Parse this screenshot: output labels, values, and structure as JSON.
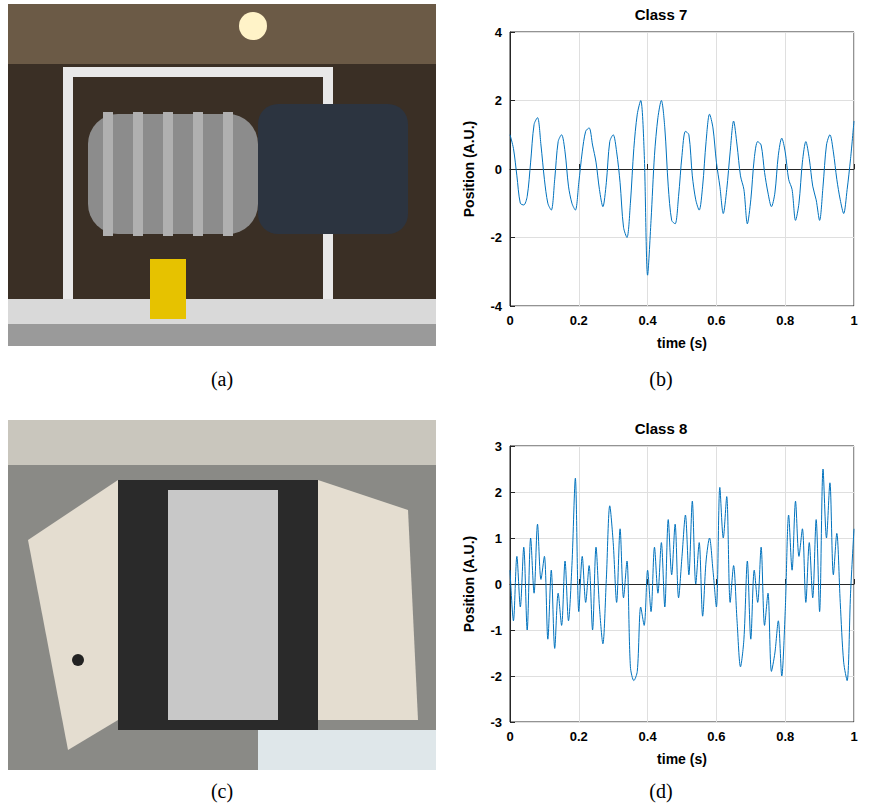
{
  "photos": [
    {
      "label": "(a)"
    },
    {
      "label": "(c)"
    }
  ],
  "chart_data": [
    {
      "type": "line",
      "panel_label": "(b)",
      "title": "Class 7",
      "x_label": "time (s)",
      "y_label": "Position (A.U.)",
      "color": "#0072bd",
      "grid": true,
      "xlim": [
        0,
        1
      ],
      "xticks": [
        0,
        0.2,
        0.4,
        0.6,
        0.8,
        1
      ],
      "ylim": [
        -4,
        4
      ],
      "yticks": [
        -4,
        -2,
        0,
        2,
        4
      ],
      "x": [
        0,
        0.01,
        0.02,
        0.03,
        0.04,
        0.05,
        0.06,
        0.07,
        0.08,
        0.09,
        0.1,
        0.11,
        0.12,
        0.13,
        0.14,
        0.15,
        0.16,
        0.17,
        0.18,
        0.19,
        0.2,
        0.21,
        0.22,
        0.23,
        0.24,
        0.25,
        0.26,
        0.27,
        0.28,
        0.29,
        0.3,
        0.31,
        0.32,
        0.33,
        0.34,
        0.35,
        0.36,
        0.37,
        0.38,
        0.39,
        0.4,
        0.41,
        0.42,
        0.43,
        0.44,
        0.45,
        0.46,
        0.47,
        0.48,
        0.49,
        0.5,
        0.51,
        0.52,
        0.53,
        0.54,
        0.55,
        0.56,
        0.57,
        0.58,
        0.59,
        0.6,
        0.61,
        0.62,
        0.63,
        0.64,
        0.65,
        0.66,
        0.67,
        0.68,
        0.69,
        0.7,
        0.71,
        0.72,
        0.73,
        0.74,
        0.75,
        0.76,
        0.77,
        0.78,
        0.79,
        0.8,
        0.81,
        0.82,
        0.83,
        0.84,
        0.85,
        0.86,
        0.87,
        0.88,
        0.89,
        0.9,
        0.91,
        0.92,
        0.93,
        0.94,
        0.95,
        0.96,
        0.97,
        0.98,
        0.99,
        1
      ],
      "values": [
        1.0,
        0.6,
        -0.2,
        -1.0,
        -1.05,
        -0.8,
        0.2,
        1.3,
        1.5,
        0.7,
        -0.3,
        -1.0,
        -1.2,
        -0.3,
        0.8,
        1.0,
        0.5,
        -0.5,
        -1.0,
        -1.2,
        -0.4,
        0.5,
        1.1,
        1.2,
        0.7,
        0.2,
        -0.6,
        -1.1,
        -0.4,
        0.8,
        1.0,
        0.5,
        -0.4,
        -1.7,
        -2.0,
        -1.0,
        0.6,
        1.6,
        2.0,
        0.5,
        -3.1,
        -1.5,
        0.4,
        1.5,
        2.0,
        1.2,
        -0.5,
        -1.5,
        -1.6,
        -0.8,
        0.4,
        1.1,
        1.0,
        -0.2,
        -0.9,
        -1.2,
        -0.5,
        0.8,
        1.6,
        1.2,
        0.2,
        -0.5,
        -1.3,
        -0.6,
        0.5,
        1.4,
        0.7,
        -0.2,
        -0.6,
        -1.6,
        -0.9,
        0.3,
        0.8,
        0.7,
        -0.1,
        -0.7,
        -1.1,
        -0.7,
        0.4,
        0.9,
        0.5,
        -0.3,
        -0.6,
        -1.5,
        -1.0,
        0.2,
        0.8,
        0.3,
        -0.5,
        -0.9,
        -1.5,
        -0.5,
        0.7,
        1.0,
        0.5,
        -0.3,
        -0.9,
        -1.3,
        -0.6,
        0.3,
        1.4
      ]
    },
    {
      "type": "line",
      "panel_label": "(d)",
      "title": "Class 8",
      "x_label": "time (s)",
      "y_label": "Position (A.U.)",
      "color": "#0072bd",
      "grid": true,
      "xlim": [
        0,
        1
      ],
      "xticks": [
        0,
        0.2,
        0.4,
        0.6,
        0.8,
        1
      ],
      "ylim": [
        -3,
        3
      ],
      "yticks": [
        -3,
        -2,
        -1,
        0,
        1,
        2,
        3
      ],
      "x": [
        0,
        0.01,
        0.02,
        0.03,
        0.04,
        0.05,
        0.06,
        0.07,
        0.08,
        0.09,
        0.1,
        0.11,
        0.12,
        0.13,
        0.14,
        0.15,
        0.16,
        0.17,
        0.18,
        0.19,
        0.2,
        0.21,
        0.22,
        0.23,
        0.24,
        0.25,
        0.26,
        0.27,
        0.28,
        0.29,
        0.3,
        0.31,
        0.32,
        0.33,
        0.34,
        0.35,
        0.36,
        0.37,
        0.38,
        0.39,
        0.4,
        0.41,
        0.42,
        0.43,
        0.44,
        0.45,
        0.46,
        0.47,
        0.48,
        0.49,
        0.5,
        0.51,
        0.52,
        0.53,
        0.54,
        0.55,
        0.56,
        0.57,
        0.58,
        0.59,
        0.6,
        0.61,
        0.62,
        0.63,
        0.64,
        0.65,
        0.66,
        0.67,
        0.68,
        0.69,
        0.7,
        0.71,
        0.72,
        0.73,
        0.74,
        0.75,
        0.76,
        0.77,
        0.78,
        0.79,
        0.8,
        0.81,
        0.82,
        0.83,
        0.84,
        0.85,
        0.86,
        0.87,
        0.88,
        0.89,
        0.9,
        0.91,
        0.92,
        0.93,
        0.94,
        0.95,
        0.96,
        0.97,
        0.98,
        0.99,
        1
      ],
      "values": [
        0.3,
        -0.8,
        0.6,
        -0.5,
        0.8,
        -1.0,
        1.0,
        -0.2,
        1.3,
        0.1,
        0.6,
        -1.2,
        0.3,
        -1.4,
        -0.2,
        -0.9,
        0.5,
        -0.8,
        0.4,
        2.3,
        -0.6,
        0.6,
        -0.4,
        0.4,
        -1.0,
        0.8,
        -0.5,
        -1.3,
        0.1,
        1.7,
        0.9,
        -0.4,
        1.2,
        -0.3,
        0.5,
        -1.8,
        -2.1,
        -1.9,
        -0.5,
        -0.9,
        0.3,
        -0.6,
        0.8,
        -0.2,
        0.9,
        -0.5,
        1.4,
        0.2,
        1.3,
        -0.3,
        0.6,
        1.5,
        0.2,
        1.8,
        0.0,
        0.9,
        -0.7,
        0.5,
        1.0,
        0.3,
        -0.5,
        2.1,
        1.0,
        1.9,
        -0.4,
        0.4,
        -0.8,
        -1.8,
        -1.2,
        0.5,
        -1.2,
        0.3,
        -0.4,
        0.8,
        -0.9,
        -0.2,
        -1.9,
        -1.5,
        -0.8,
        -2.0,
        -0.6,
        1.5,
        0.3,
        1.8,
        0.6,
        1.2,
        -0.4,
        0.9,
        -0.3,
        1.4,
        -0.6,
        2.5,
        1.0,
        2.2,
        0.2,
        1.1,
        -0.4,
        -1.7,
        -2.1,
        -0.2,
        1.2
      ]
    }
  ]
}
